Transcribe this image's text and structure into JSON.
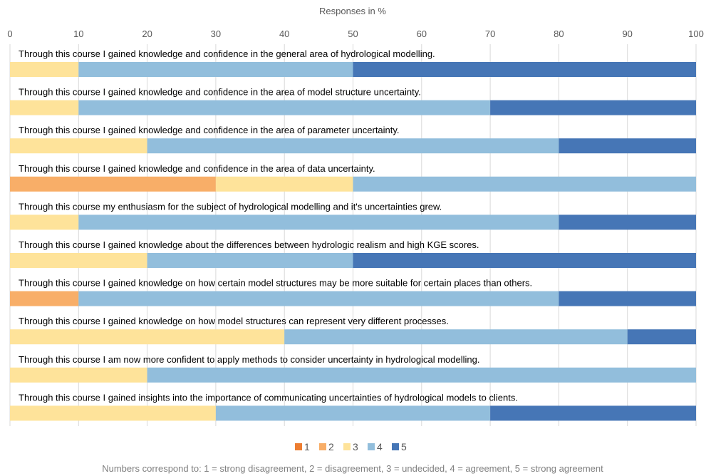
{
  "chart_data": {
    "type": "bar",
    "orientation": "horizontal-stacked",
    "x_axis_title": "Responses in %",
    "xlim": [
      0,
      100
    ],
    "x_ticks": [
      "0",
      "10",
      "20",
      "30",
      "40",
      "50",
      "60",
      "70",
      "80",
      "90",
      "100"
    ],
    "grid": "vertical",
    "legend_position": "bottom",
    "series": [
      {
        "name": "1",
        "color": "#ED7D31"
      },
      {
        "name": "2",
        "color": "#F8AE68"
      },
      {
        "name": "3",
        "color": "#FEE39A"
      },
      {
        "name": "4",
        "color": "#92BEDC"
      },
      {
        "name": "5",
        "color": "#4676B6"
      }
    ],
    "questions": [
      {
        "text": "Through this course I gained knowledge and confidence in the general area of hydrological modelling.",
        "values": [
          0,
          0,
          10,
          40,
          50
        ]
      },
      {
        "text": "Through this course I gained knowledge and confidence in the area of model structure uncertainty.",
        "values": [
          0,
          0,
          10,
          60,
          30
        ]
      },
      {
        "text": "Through this course I gained knowledge and confidence in the area of parameter uncertainty.",
        "values": [
          0,
          0,
          20,
          60,
          20
        ]
      },
      {
        "text": "Through this course I gained knowledge and confidence in the area of data uncertainty.",
        "values": [
          0,
          30,
          20,
          50,
          0
        ]
      },
      {
        "text": "Through this course my enthusiasm for the subject of hydrological modelling and it's uncertainties grew.",
        "values": [
          0,
          0,
          10,
          70,
          20
        ]
      },
      {
        "text": "Through this course I gained knowledge about the differences between hydrologic realism and high KGE scores.",
        "values": [
          0,
          0,
          20,
          30,
          50
        ]
      },
      {
        "text": "Through this course I gained knowledge on how certain model structures may be more suitable for certain places than others.",
        "values": [
          0,
          10,
          0,
          70,
          20
        ]
      },
      {
        "text": "Through this course I gained knowledge on how model structures can represent very different processes.",
        "values": [
          0,
          0,
          40,
          50,
          10
        ]
      },
      {
        "text": "Through this course I am now more confident to apply methods to consider uncertainty in hydrological modelling.",
        "values": [
          0,
          0,
          20,
          80,
          0
        ]
      },
      {
        "text": "Through this course I gained insights into the importance of communicating uncertainties of hydrological models to clients.",
        "values": [
          0,
          0,
          30,
          40,
          30
        ]
      }
    ],
    "footnote": "Numbers correspond to: 1 = strong disagreement, 2 = disagreement, 3 = undecided, 4 = agreement, 5 = strong agreement"
  }
}
